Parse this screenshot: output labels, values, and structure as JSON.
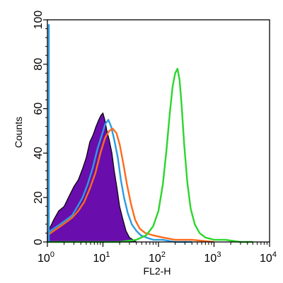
{
  "chart_data": {
    "type": "area",
    "xlabel": "FL2-H",
    "ylabel": "Counts",
    "x_scale": "log",
    "xlim": [
      1,
      10000
    ],
    "ylim": [
      0,
      100
    ],
    "x_ticks": [
      {
        "value": 1,
        "base": "10",
        "exp": "0"
      },
      {
        "value": 10,
        "base": "10",
        "exp": "1"
      },
      {
        "value": 100,
        "base": "10",
        "exp": "2"
      },
      {
        "value": 1000,
        "base": "10",
        "exp": "3"
      },
      {
        "value": 10000,
        "base": "10",
        "exp": "4"
      }
    ],
    "y_ticks": [
      "0",
      "20",
      "40",
      "60",
      "80",
      "100"
    ],
    "y_tick_values": [
      0,
      20,
      40,
      60,
      80,
      100
    ],
    "series": [
      {
        "color": "#6a0dad",
        "style": "filled",
        "x": [
          1,
          1.3,
          1.6,
          2,
          2.5,
          3,
          3.6,
          4.3,
          5,
          5.8,
          6.6,
          7.5,
          8.4,
          9.2,
          10,
          10.8,
          11.8,
          13,
          14.5,
          16,
          18,
          20,
          23,
          26,
          30,
          35,
          40
        ],
        "y": [
          4,
          10,
          14,
          16,
          21,
          25,
          28,
          33,
          38,
          45,
          48,
          52,
          55,
          57,
          58,
          55,
          50,
          46,
          40,
          32,
          24,
          16,
          10,
          5,
          2,
          1,
          0
        ]
      },
      {
        "color": "#2e9be0",
        "style": "line",
        "x": [
          1,
          1.3,
          1.7,
          2.2,
          2.8,
          3.5,
          4.3,
          5.3,
          6.5,
          8,
          9.5,
          11,
          12.5,
          14,
          16,
          18.5,
          21,
          24,
          28,
          33,
          40,
          48,
          60,
          80,
          120,
          200,
          400
        ],
        "y": [
          4,
          6,
          8,
          10,
          12,
          16,
          20,
          26,
          33,
          42,
          48,
          53,
          55,
          52,
          46,
          38,
          28,
          20,
          13,
          8,
          5,
          3,
          2,
          1,
          1,
          0,
          0
        ]
      },
      {
        "color": "#ff6a1a",
        "style": "line",
        "x": [
          1,
          1.3,
          1.7,
          2.2,
          2.8,
          3.6,
          4.6,
          5.8,
          7.3,
          9,
          11,
          13,
          15,
          17.5,
          20,
          23,
          27,
          32,
          38,
          46,
          58,
          80,
          120,
          200,
          400,
          1000
        ],
        "y": [
          3,
          5,
          7,
          9,
          11,
          14,
          18,
          24,
          31,
          40,
          47,
          50,
          51,
          49,
          44,
          36,
          26,
          17,
          10,
          6,
          4,
          3,
          2,
          1,
          1,
          0
        ]
      },
      {
        "color": "#2bd62b",
        "style": "line",
        "x": [
          1,
          20,
          40,
          60,
          80,
          100,
          120,
          140,
          160,
          180,
          200,
          220,
          240,
          260,
          290,
          330,
          380,
          450,
          550,
          700,
          1000,
          1600,
          3000,
          5000
        ],
        "y": [
          0,
          0,
          1,
          3,
          7,
          14,
          26,
          42,
          58,
          70,
          76,
          78,
          73,
          62,
          44,
          27,
          15,
          8,
          4,
          2,
          1,
          1,
          0,
          0
        ]
      }
    ]
  }
}
